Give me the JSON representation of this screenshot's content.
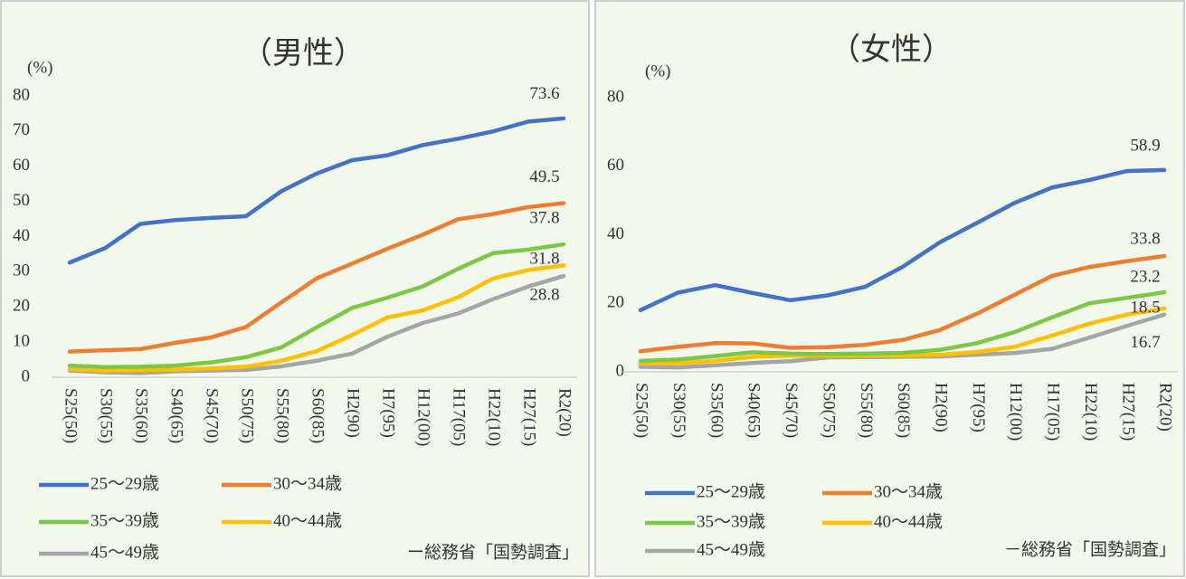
{
  "chart_data": [
    {
      "type": "line",
      "title": "（男性）",
      "y_label": "(%)",
      "source": "ー総務省「国勢調査」",
      "categories": [
        "S25(50)",
        "S30(55)",
        "S35(60)",
        "S40(65)",
        "S45(70)",
        "S50(75)",
        "S55(80)",
        "S60(85)",
        "H2(90)",
        "H7(95)",
        "H12(00)",
        "H17(05)",
        "H22(10)",
        "H27(15)",
        "R2(20)"
      ],
      "series": [
        {
          "name": "25～29歳",
          "color": "#4472c4",
          "values": [
            32.6,
            36.7,
            43.6,
            44.7,
            45.3,
            45.8,
            52.9,
            57.9,
            61.7,
            63.1,
            66.0,
            67.8,
            69.9,
            72.7,
            73.6
          ]
        },
        {
          "name": "30～34歳",
          "color": "#ed7d31",
          "values": [
            7.3,
            7.7,
            8.0,
            9.8,
            11.3,
            14.3,
            21.3,
            28.1,
            32.3,
            36.5,
            40.5,
            44.9,
            46.4,
            48.4,
            49.5
          ]
        },
        {
          "name": "35～39歳",
          "color": "#7cc846",
          "values": [
            3.3,
            2.9,
            3.0,
            3.3,
            4.2,
            5.7,
            8.5,
            14.2,
            19.7,
            22.6,
            25.8,
            30.8,
            35.3,
            36.3,
            37.8
          ]
        },
        {
          "name": "40～44歳",
          "color": "#ffc000",
          "values": [
            2.3,
            1.9,
            2.1,
            2.2,
            2.5,
            3.0,
            4.7,
            7.4,
            12.0,
            17.0,
            19.0,
            22.7,
            28.1,
            30.5,
            31.8
          ]
        },
        {
          "name": "45～49歳",
          "color": "#a5a5a5",
          "values": [
            1.9,
            1.4,
            1.2,
            1.7,
            1.9,
            2.1,
            3.1,
            4.7,
            6.7,
            11.5,
            15.4,
            18.1,
            22.2,
            25.8,
            28.8
          ]
        }
      ],
      "ylim": [
        0,
        80
      ],
      "yticks": [
        0,
        10,
        20,
        30,
        40,
        50,
        60,
        70,
        80
      ],
      "grid": false
    },
    {
      "type": "line",
      "title": "（女性）",
      "y_label": "(%)",
      "source": "－総務省「国勢調査」",
      "categories": [
        "S25(50)",
        "S30(55)",
        "S35(60)",
        "S40(65)",
        "S45(70)",
        "S50(75)",
        "S55(80)",
        "S60(85)",
        "H2(90)",
        "H7(95)",
        "H12(00)",
        "H17(05)",
        "H22(10)",
        "H27(15)",
        "R2(20)"
      ],
      "series": [
        {
          "name": "25～29歳",
          "color": "#4472c4",
          "values": [
            18.0,
            23.1,
            25.3,
            23.0,
            20.9,
            22.3,
            24.8,
            30.6,
            37.8,
            43.5,
            49.3,
            53.8,
            56.0,
            58.6,
            58.9
          ]
        },
        {
          "name": "30～34歳",
          "color": "#ed7d31",
          "values": [
            6.0,
            7.3,
            8.4,
            8.3,
            7.0,
            7.2,
            7.9,
            9.3,
            12.2,
            17.0,
            22.5,
            28.0,
            30.6,
            32.3,
            33.8
          ]
        },
        {
          "name": "35～39歳",
          "color": "#7cc846",
          "values": [
            3.2,
            3.6,
            4.6,
            5.7,
            5.3,
            5.2,
            5.3,
            5.5,
            6.4,
            8.4,
            11.6,
            15.9,
            20.0,
            21.6,
            23.2
          ]
        },
        {
          "name": "40～44歳",
          "color": "#ffc000",
          "values": [
            2.4,
            2.5,
            3.2,
            4.4,
            4.7,
            4.8,
            4.8,
            4.8,
            5.0,
            5.8,
            7.3,
            10.6,
            14.1,
            16.7,
            18.5
          ]
        },
        {
          "name": "45～49歳",
          "color": "#a5a5a5",
          "values": [
            1.5,
            1.3,
            1.9,
            2.6,
            3.1,
            4.2,
            4.3,
            4.4,
            4.5,
            5.0,
            5.5,
            6.7,
            10.0,
            13.4,
            16.7
          ]
        }
      ],
      "ylim": [
        0,
        80
      ],
      "yticks": [
        0,
        20,
        40,
        60,
        80
      ],
      "grid": false
    }
  ]
}
